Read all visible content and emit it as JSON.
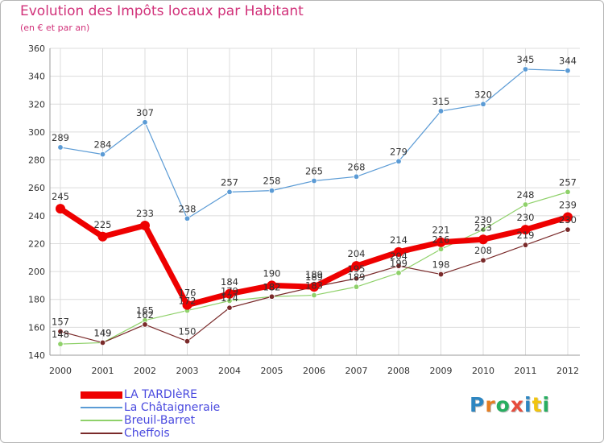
{
  "chart_data": {
    "type": "line",
    "title": "Evolution des Impôts locaux par Habitant",
    "subtitle": "(en € et par an)",
    "xlabel": "",
    "ylabel": "",
    "ylim": [
      140,
      360
    ],
    "yticks": [
      140,
      160,
      180,
      200,
      220,
      240,
      260,
      280,
      300,
      320,
      340,
      360
    ],
    "grid": true,
    "categories": [
      "2000",
      "2001",
      "2002",
      "2003",
      "2004",
      "2005",
      "2006",
      "2007",
      "2008",
      "2009",
      "2010",
      "2011",
      "2012"
    ],
    "series": [
      {
        "name": "La Châtaigneraie",
        "color": "#5b9bd5",
        "values": [
          289,
          284,
          307,
          238,
          257,
          258,
          265,
          268,
          279,
          315,
          320,
          345,
          344
        ]
      },
      {
        "name": "Breuil-Barret",
        "color": "#8fd16a",
        "values": [
          148,
          149,
          165,
          172,
          179,
          182,
          183,
          189,
          199,
          216,
          230,
          248,
          257
        ]
      },
      {
        "name": "Cheffois",
        "color": "#7a2a2a",
        "values": [
          157,
          149,
          162,
          150,
          174,
          182,
          189,
          195,
          204,
          198,
          208,
          219,
          230
        ]
      },
      {
        "name": "LA TARDIèRE",
        "color": "#ee0000",
        "values": [
          245,
          225,
          233,
          176,
          184,
          190,
          189,
          204,
          214,
          221,
          223,
          230,
          239
        ]
      }
    ],
    "legend": [
      "LA TARDIèRE",
      "La Châtaigneraie",
      "Breuil-Barret",
      "Cheffois"
    ],
    "legend_position": "bottom-left"
  },
  "logo": {
    "letters": [
      "P",
      "r",
      "o",
      "x",
      "i",
      "t",
      "i"
    ],
    "colors": [
      "#2e86c1",
      "#e67e22",
      "#27ae60",
      "#e74c3c",
      "#2e86c1",
      "#f1c40f",
      "#27ae60"
    ]
  }
}
